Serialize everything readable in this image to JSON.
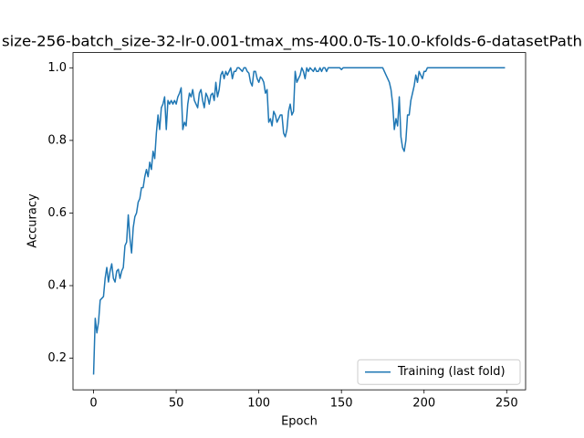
{
  "chart_data": {
    "type": "line",
    "title": "size-256-batch_size-32-lr-0.001-tmax_ms-400.0-Ts-10.0-kfolds-6-datasetPath",
    "xlabel": "Epoch",
    "ylabel": "Accuracy",
    "x": [
      0,
      1,
      2,
      3,
      4,
      5,
      6,
      7,
      8,
      9,
      10,
      11,
      12,
      13,
      14,
      15,
      16,
      17,
      18,
      19,
      20,
      21,
      22,
      23,
      24,
      25,
      26,
      27,
      28,
      29,
      30,
      31,
      32,
      33,
      34,
      35,
      36,
      37,
      38,
      39,
      40,
      41,
      42,
      43,
      44,
      45,
      46,
      47,
      48,
      49,
      50,
      51,
      52,
      53,
      54,
      55,
      56,
      57,
      58,
      59,
      60,
      61,
      62,
      63,
      64,
      65,
      66,
      67,
      68,
      69,
      70,
      71,
      72,
      73,
      74,
      75,
      76,
      77,
      78,
      79,
      80,
      81,
      82,
      83,
      84,
      85,
      86,
      87,
      88,
      89,
      90,
      91,
      92,
      93,
      94,
      95,
      96,
      97,
      98,
      99,
      100,
      101,
      102,
      103,
      104,
      105,
      106,
      107,
      108,
      109,
      110,
      111,
      112,
      113,
      114,
      115,
      116,
      117,
      118,
      119,
      120,
      121,
      122,
      123,
      124,
      125,
      126,
      127,
      128,
      129,
      130,
      131,
      132,
      133,
      134,
      135,
      136,
      137,
      138,
      139,
      140,
      141,
      142,
      143,
      144,
      145,
      146,
      147,
      148,
      149,
      150,
      151,
      152,
      153,
      154,
      155,
      156,
      157,
      158,
      159,
      160,
      161,
      162,
      163,
      164,
      165,
      166,
      167,
      168,
      169,
      170,
      171,
      172,
      173,
      174,
      175,
      176,
      177,
      178,
      179,
      180,
      181,
      182,
      183,
      184,
      185,
      186,
      187,
      188,
      189,
      190,
      191,
      192,
      193,
      194,
      195,
      196,
      197,
      198,
      199,
      200,
      201,
      202,
      203,
      204,
      205,
      206,
      207,
      208,
      209,
      210,
      211,
      212,
      213,
      214,
      215,
      216,
      217,
      218,
      219,
      220,
      221,
      222,
      223,
      224,
      225,
      226,
      227,
      228,
      229,
      230,
      231,
      232,
      233,
      234,
      235,
      236,
      237,
      238,
      239,
      240,
      241,
      242,
      243,
      244,
      245,
      246,
      247,
      248,
      249
    ],
    "series": [
      {
        "name": "Training (last fold)",
        "color": "#1f77b4",
        "values": [
          0.155,
          0.31,
          0.27,
          0.3,
          0.36,
          0.365,
          0.37,
          0.42,
          0.45,
          0.41,
          0.44,
          0.46,
          0.42,
          0.41,
          0.44,
          0.445,
          0.42,
          0.44,
          0.45,
          0.51,
          0.52,
          0.595,
          0.53,
          0.49,
          0.56,
          0.59,
          0.6,
          0.63,
          0.64,
          0.67,
          0.67,
          0.7,
          0.72,
          0.7,
          0.74,
          0.72,
          0.77,
          0.75,
          0.82,
          0.87,
          0.83,
          0.89,
          0.9,
          0.92,
          0.83,
          0.91,
          0.9,
          0.91,
          0.9,
          0.91,
          0.9,
          0.92,
          0.93,
          0.945,
          0.83,
          0.85,
          0.84,
          0.9,
          0.93,
          0.92,
          0.94,
          0.91,
          0.9,
          0.89,
          0.93,
          0.94,
          0.91,
          0.89,
          0.93,
          0.92,
          0.9,
          0.925,
          0.93,
          0.91,
          0.96,
          0.92,
          0.94,
          0.98,
          0.99,
          0.97,
          0.99,
          0.98,
          0.99,
          1.0,
          0.97,
          0.99,
          0.99,
          1.0,
          1.0,
          0.995,
          0.99,
          1.0,
          1.0,
          0.99,
          0.985,
          0.96,
          0.95,
          0.99,
          0.99,
          0.97,
          0.96,
          0.975,
          0.97,
          0.96,
          0.93,
          0.94,
          0.85,
          0.86,
          0.84,
          0.88,
          0.87,
          0.85,
          0.86,
          0.87,
          0.87,
          0.82,
          0.81,
          0.83,
          0.88,
          0.9,
          0.87,
          0.88,
          0.99,
          0.96,
          0.97,
          0.98,
          1.0,
          0.99,
          0.97,
          1.0,
          0.99,
          1.0,
          0.995,
          0.99,
          1.0,
          0.99,
          0.99,
          1.0,
          0.99,
          1.0,
          1.0,
          0.99,
          1.0,
          1.0,
          1.0,
          1.0,
          1.0,
          1.0,
          1.0,
          1.0,
          0.995,
          1.0,
          1.0,
          1.0,
          1.0,
          1.0,
          1.0,
          1.0,
          1.0,
          1.0,
          1.0,
          1.0,
          1.0,
          1.0,
          1.0,
          1.0,
          1.0,
          1.0,
          1.0,
          1.0,
          1.0,
          1.0,
          1.0,
          1.0,
          1.0,
          1.0,
          0.99,
          0.98,
          0.97,
          0.96,
          0.94,
          0.9,
          0.83,
          0.86,
          0.84,
          0.92,
          0.81,
          0.78,
          0.77,
          0.8,
          0.87,
          0.87,
          0.91,
          0.93,
          0.95,
          0.98,
          0.96,
          0.99,
          0.98,
          0.97,
          0.99,
          0.99,
          1.0,
          1.0,
          1.0,
          1.0,
          1.0,
          1.0,
          1.0,
          1.0,
          1.0,
          1.0,
          1.0,
          1.0,
          1.0,
          1.0,
          1.0,
          1.0,
          1.0,
          1.0,
          1.0,
          1.0,
          1.0,
          1.0,
          1.0,
          1.0,
          1.0,
          1.0,
          1.0,
          1.0,
          1.0,
          1.0,
          1.0,
          1.0,
          1.0,
          1.0,
          1.0,
          1.0,
          1.0,
          1.0,
          1.0,
          1.0,
          1.0,
          1.0,
          1.0,
          1.0,
          1.0,
          1.0,
          1.0,
          1.0
        ]
      }
    ],
    "xlim": [
      -12.45,
      261.45
    ],
    "ylim": [
      0.113,
      1.042
    ],
    "xticks": [
      0,
      50,
      100,
      150,
      200,
      250
    ],
    "yticks": [
      0.2,
      0.4,
      0.6,
      0.8,
      {
        "value": 1,
        "label": "1.0"
      }
    ],
    "legend": "lower right"
  }
}
